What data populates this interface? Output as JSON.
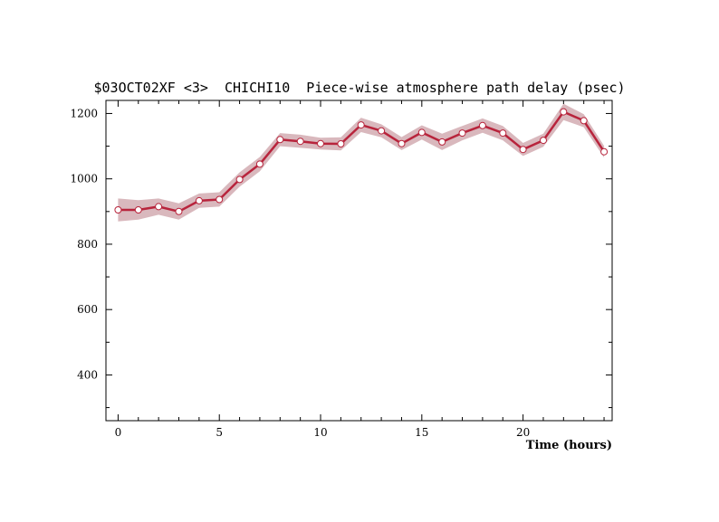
{
  "chart_data": {
    "type": "line",
    "title": "$03OCT02XF <3>  CHICHI10  Piece-wise atmosphere path delay (psec)",
    "xlabel": "Time (hours)",
    "ylabel": "",
    "xlim": [
      -0.6,
      24.4
    ],
    "ylim": [
      260,
      1240
    ],
    "xticks": [
      0,
      5,
      10,
      15,
      20
    ],
    "yticks": [
      400,
      600,
      800,
      1000,
      1200
    ],
    "grid": false,
    "legend": "none",
    "series": [
      {
        "x": [
          0,
          1,
          2,
          3,
          4,
          5,
          6,
          7,
          8,
          9,
          10,
          11,
          12,
          13,
          14,
          15,
          16,
          17,
          18,
          19,
          20,
          21,
          22,
          23,
          24
        ],
        "values": [
          905,
          905,
          915,
          900,
          933,
          937,
          998,
          1045,
          1120,
          1115,
          1108,
          1107,
          1165,
          1147,
          1108,
          1142,
          1113,
          1140,
          1163,
          1140,
          1090,
          1118,
          1205,
          1178,
          1083
        ],
        "band_halfwidth": [
          35,
          30,
          25,
          25,
          22,
          22,
          22,
          22,
          20,
          20,
          18,
          20,
          22,
          20,
          20,
          22,
          25,
          22,
          22,
          22,
          20,
          20,
          25,
          20,
          18
        ]
      }
    ],
    "colors": {
      "line": "#b8243c",
      "band": "#d9b8bd",
      "marker_fill": "#ffffff",
      "axis": "#000000"
    }
  }
}
